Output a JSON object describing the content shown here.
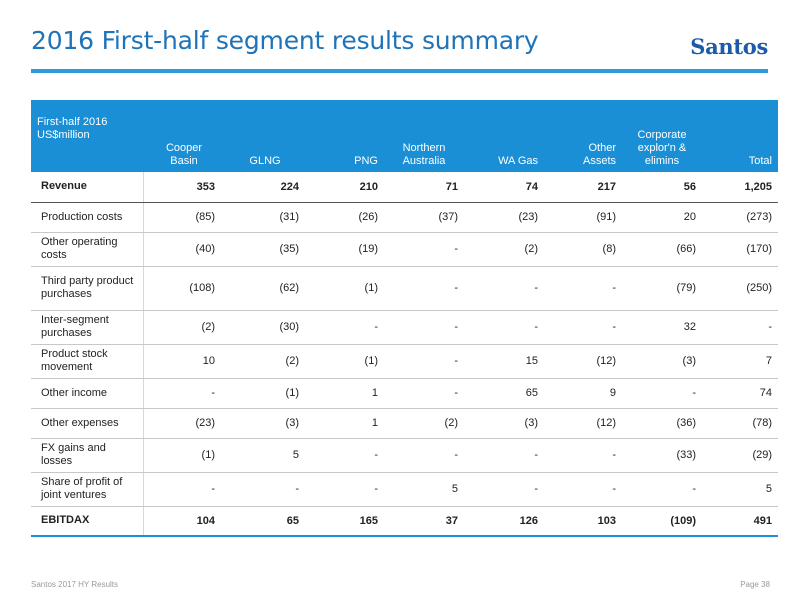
{
  "header": {
    "title": "2016 First-half segment results summary",
    "logo_text": "Santos"
  },
  "table": {
    "header_row": {
      "col0_line1": "First-half 2016",
      "col0_line2": "US$million",
      "cols": [
        {
          "line1": "Cooper",
          "line2": "Basin"
        },
        {
          "line1": "",
          "line2": "GLNG"
        },
        {
          "line1": "",
          "line2": "PNG"
        },
        {
          "line1": "Northern",
          "line2": "Australia"
        },
        {
          "line1": "",
          "line2": "WA Gas"
        },
        {
          "line1": "Other",
          "line2": "Assets"
        },
        {
          "line1": "Corporate explor'n &",
          "line2": "elimins"
        },
        {
          "line1": "",
          "line2": "Total"
        }
      ]
    },
    "rows": [
      {
        "label": "Revenue",
        "values": [
          "353",
          "224",
          "210",
          "71",
          "74",
          "217",
          "56",
          "1,205"
        ]
      },
      {
        "label": "Production costs",
        "values": [
          "(85)",
          "(31)",
          "(26)",
          "(37)",
          "(23)",
          "(91)",
          "20",
          "(273)"
        ]
      },
      {
        "label": "Other operating costs",
        "values": [
          "(40)",
          "(35)",
          "(19)",
          "-",
          "(2)",
          "(8)",
          "(66)",
          "(170)"
        ]
      },
      {
        "label": "Third party product purchases",
        "values": [
          "(108)",
          "(62)",
          "(1)",
          "-",
          "-",
          "-",
          "(79)",
          "(250)"
        ]
      },
      {
        "label": "Inter-segment purchases",
        "values": [
          "(2)",
          "(30)",
          "-",
          "-",
          "-",
          "-",
          "32",
          "-"
        ]
      },
      {
        "label": "Product stock movement",
        "values": [
          "10",
          "(2)",
          "(1)",
          "-",
          "15",
          "(12)",
          "(3)",
          "7"
        ]
      },
      {
        "label": "Other income",
        "values": [
          "-",
          "(1)",
          "1",
          "-",
          "65",
          "9",
          "-",
          "74"
        ]
      },
      {
        "label": "Other expenses",
        "values": [
          "(23)",
          "(3)",
          "1",
          "(2)",
          "(3)",
          "(12)",
          "(36)",
          "(78)"
        ]
      },
      {
        "label": "FX gains and losses",
        "values": [
          "(1)",
          "5",
          "-",
          "-",
          "-",
          "-",
          "(33)",
          "(29)"
        ]
      },
      {
        "label": "Share of profit of joint ventures",
        "values": [
          "-",
          "-",
          "-",
          "5",
          "-",
          "-",
          "-",
          "5"
        ]
      },
      {
        "label": "EBITDAX",
        "values": [
          "104",
          "65",
          "165",
          "37",
          "126",
          "103",
          "(109)",
          "491"
        ]
      }
    ]
  },
  "footer": {
    "left": "Santos 2017 HY Results",
    "right": "Page 38"
  },
  "colors": {
    "title_blue": "#1f73b8",
    "header_fill": "#1a8fd6",
    "rule_blue": "#2e9ad8",
    "logo_blue": "#1d5aa8"
  }
}
